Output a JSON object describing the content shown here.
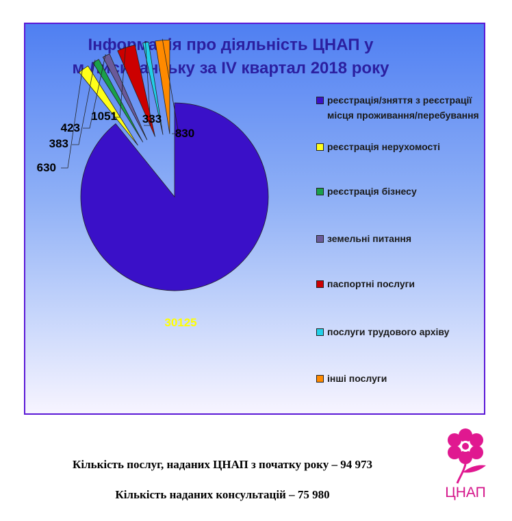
{
  "chart_data": {
    "type": "pie",
    "title_lines": [
      "Інформація про діяльність ЦНАП у",
      "м.Лисичанську за IV квартал 2018 року"
    ],
    "slices": [
      {
        "label": "реєстрація/зняття з реєстрації місця проживання/перебування",
        "value": 30125,
        "color": "#3a10c8"
      },
      {
        "label": "реєстрація нерухомості",
        "value": 630,
        "color": "#ffff1a"
      },
      {
        "label": "реєстрація бізнесу",
        "value": 383,
        "color": "#1aa04a"
      },
      {
        "label": "земельні питання",
        "value": 423,
        "color": "#6a5a9a"
      },
      {
        "label": "паспортні послуги",
        "value": 1051,
        "color": "#cc0000"
      },
      {
        "label": "послуги трудового архіву",
        "value": 333,
        "color": "#22d0e8"
      },
      {
        "label": "інші послуги",
        "value": 830,
        "color": "#ff8a00"
      }
    ],
    "legend_position": "right",
    "data_labels": [
      "30125",
      "630",
      "383",
      "423",
      "1051",
      "333",
      "830"
    ]
  },
  "footer": {
    "services_line": "Кількість  послуг, наданих ЦНАП з початку року – 94 973",
    "consultations_line": "Кількість  наданих консультацій – 75 980"
  },
  "logo": {
    "text": "ЦНАП",
    "icon": "flower-icon",
    "color": "#d4148a"
  }
}
